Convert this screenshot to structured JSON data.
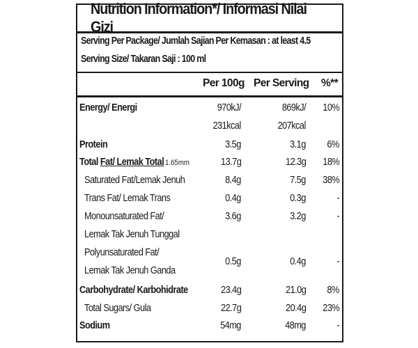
{
  "title": "Nutrition Information*/ Informasi Nilai Gizi",
  "serving_per_package": "Serving Per Package/ Jumlah Sajian Per Kemasan : at least 4.5",
  "serving_size": "Serving Size/ Takaran Saji : 100 ml",
  "columns": {
    "per100": "Per 100g",
    "per_serving": "Per Serving",
    "pct": "%**"
  },
  "rows": {
    "energy": {
      "label": "Energy/ Energi",
      "per100": "970kJ/",
      "per100_b": "231kcal",
      "serving": "869kJ/",
      "serving_b": "207kcal",
      "pct": "10%"
    },
    "protein": {
      "label": "Protein",
      "per100": "3.5g",
      "serving": "3.1g",
      "pct": "6%"
    },
    "total_fat": {
      "label_a": "Total ",
      "label_b": "Fat/ Lemak Total",
      "note": "1.65mm",
      "per100": "13.7g",
      "serving": "12.3g",
      "pct": "18%"
    },
    "sat_fat": {
      "label": "Saturated Fat/Lemak Jenuh",
      "per100": "8.4g",
      "serving": "7.5g",
      "pct": "38%"
    },
    "trans_fat": {
      "label": "Trans Fat/ Lemak Trans",
      "per100": "0.4g",
      "serving": "0.3g",
      "pct": "-"
    },
    "mono_fat": {
      "label": "Monounsaturated Fat/",
      "label_b": "Lemak Tak Jenuh Tunggal",
      "per100": "3.6g",
      "serving": "3.2g",
      "pct": "-"
    },
    "poly_fat": {
      "label": "Polyunsaturated Fat/",
      "label_b": "Lemak Tak Jenuh Ganda",
      "per100": "0.5g",
      "serving": "0.4g",
      "pct": "-"
    },
    "carb": {
      "label": "Carbohydrate/ Karbohidrate",
      "per100": "23.4g",
      "serving": "21.0g",
      "pct": "8%"
    },
    "sugars": {
      "label": "Total Sugars/ Gula",
      "per100": "22.7g",
      "serving": "20.4g",
      "pct": "23%"
    },
    "sodium": {
      "label": "Sodium",
      "per100": "54mg",
      "serving": "48mg",
      "pct": "-"
    }
  }
}
